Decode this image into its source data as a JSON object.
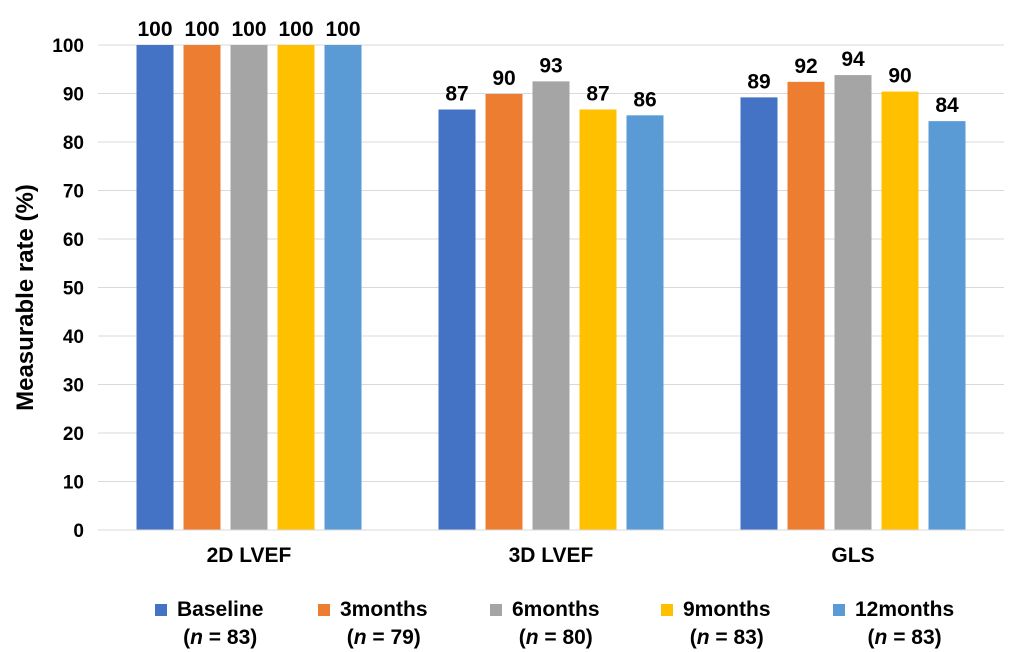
{
  "chart_data": {
    "type": "bar",
    "title": "",
    "ylabel": "Measurable rate (%)",
    "xlabel": "",
    "ylim": [
      0,
      100
    ],
    "yticks": [
      0,
      10,
      20,
      30,
      40,
      50,
      60,
      70,
      80,
      90,
      100
    ],
    "grid": true,
    "legend_position": "bottom",
    "categories": [
      "2D LVEF",
      "3D LVEF",
      "GLS"
    ],
    "series": [
      {
        "name": "Baseline",
        "n_prefix": "(",
        "n_var": "n",
        "n_suffix": " = 83)",
        "color": "#4472C4",
        "values": [
          100,
          86.7,
          89.2
        ],
        "labels": [
          "100",
          "87",
          "89"
        ]
      },
      {
        "name": "3months",
        "n_prefix": "(",
        "n_var": "n",
        "n_suffix": " = 79)",
        "color": "#ED7D31",
        "values": [
          100,
          89.9,
          92.4
        ],
        "labels": [
          "100",
          "90",
          "92"
        ]
      },
      {
        "name": "6months",
        "n_prefix": "(",
        "n_var": "n",
        "n_suffix": " = 80)",
        "color": "#A5A5A5",
        "values": [
          100,
          92.5,
          93.8
        ],
        "labels": [
          "100",
          "93",
          "94"
        ]
      },
      {
        "name": "9months",
        "n_prefix": "(",
        "n_var": "n",
        "n_suffix": " = 83)",
        "color": "#FFC000",
        "values": [
          100,
          86.7,
          90.4
        ],
        "labels": [
          "100",
          "87",
          "90"
        ]
      },
      {
        "name": "12months",
        "n_prefix": "(",
        "n_var": "n",
        "n_suffix": " = 83)",
        "color": "#5B9BD5",
        "values": [
          100,
          85.5,
          84.3
        ],
        "labels": [
          "100",
          "86",
          "84"
        ]
      }
    ]
  }
}
